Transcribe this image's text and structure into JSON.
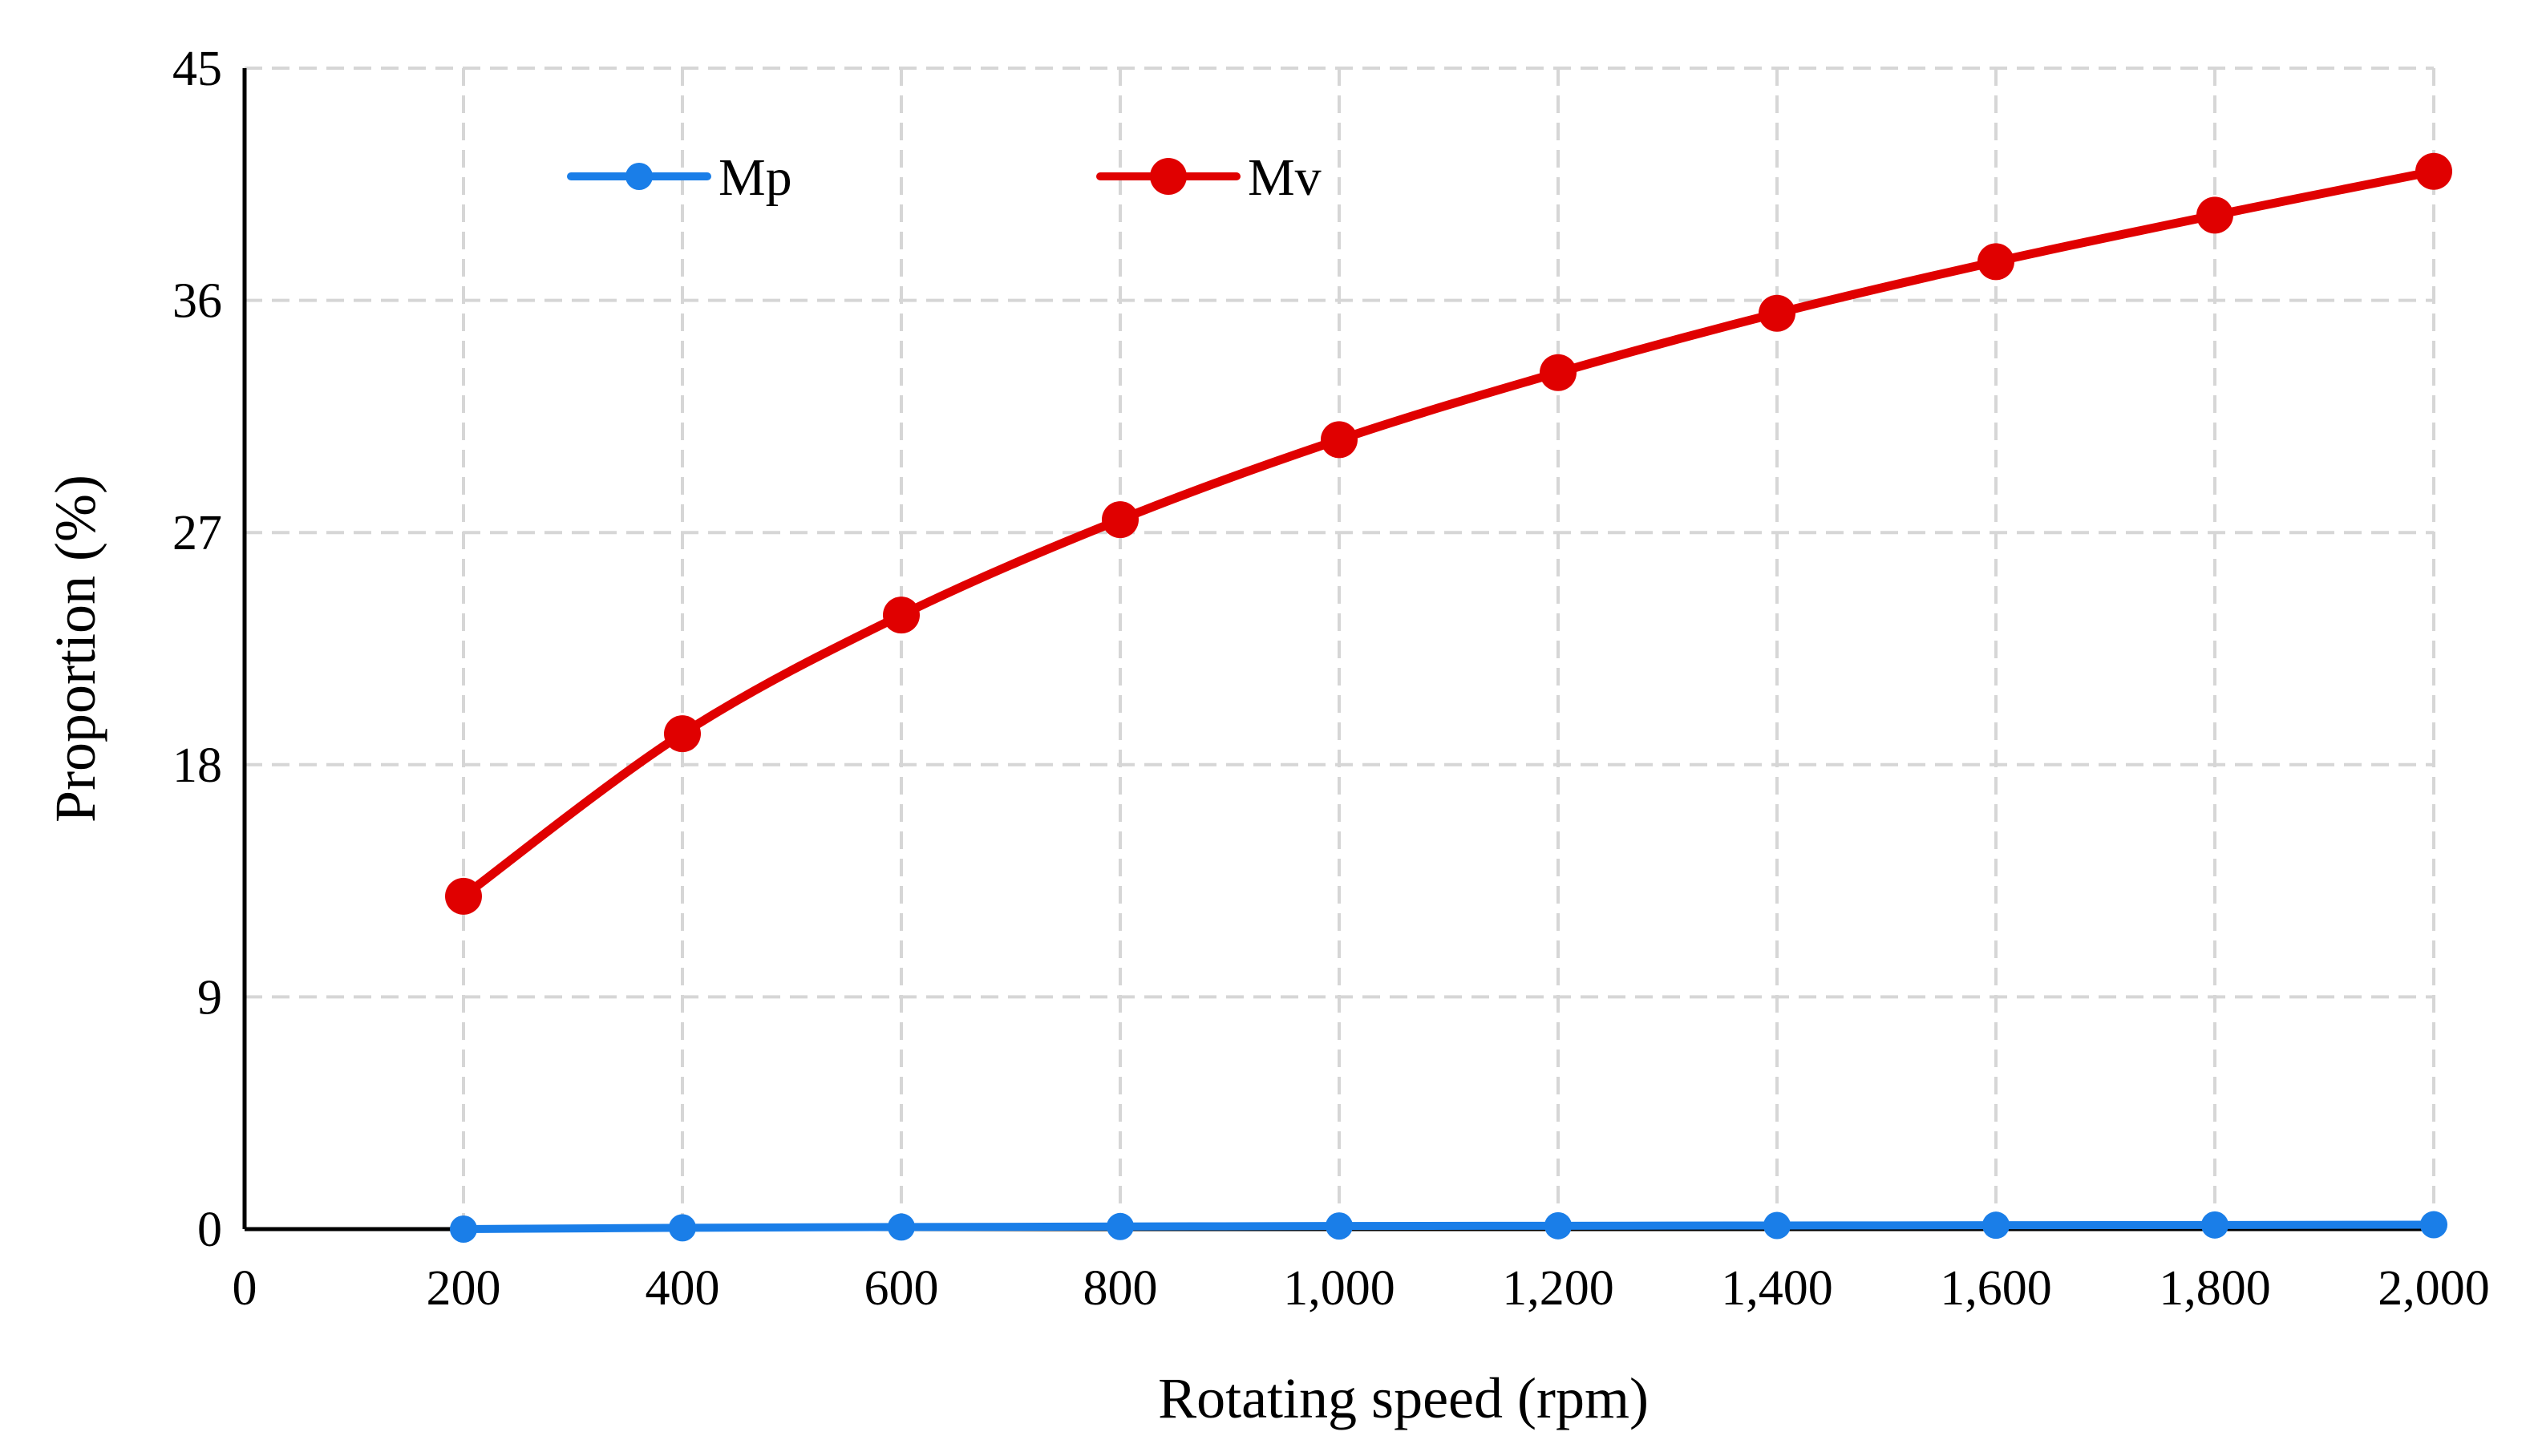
{
  "chart_data": {
    "type": "line",
    "title": "",
    "xlabel": "Rotating speed (rpm)",
    "ylabel": "Proportion (%)",
    "xlim": [
      0,
      2000
    ],
    "ylim": [
      0,
      45
    ],
    "x_ticks": [
      0,
      200,
      400,
      600,
      800,
      1000,
      1200,
      1400,
      1600,
      1800,
      2000
    ],
    "x_tick_labels": [
      "0",
      "200",
      "400",
      "600",
      "800",
      "1,000",
      "1,200",
      "1,400",
      "1,600",
      "1,800",
      "2,000"
    ],
    "y_ticks": [
      0,
      9,
      18,
      27,
      36,
      45
    ],
    "y_tick_labels": [
      "0",
      "9",
      "18",
      "27",
      "36",
      "45"
    ],
    "grid": true,
    "legend_position": "top-left",
    "x": [
      200,
      400,
      600,
      800,
      1000,
      1200,
      1400,
      1600,
      1800,
      2000
    ],
    "series": [
      {
        "name": "Mp",
        "color": "#1a7ee8",
        "values": [
          0.0,
          0.05,
          0.08,
          0.1,
          0.12,
          0.13,
          0.14,
          0.15,
          0.16,
          0.17
        ]
      },
      {
        "name": "Mv",
        "color": "#e00000",
        "values": [
          12.9,
          19.2,
          23.8,
          27.5,
          30.6,
          33.2,
          35.5,
          37.5,
          39.3,
          41.0
        ]
      }
    ]
  }
}
